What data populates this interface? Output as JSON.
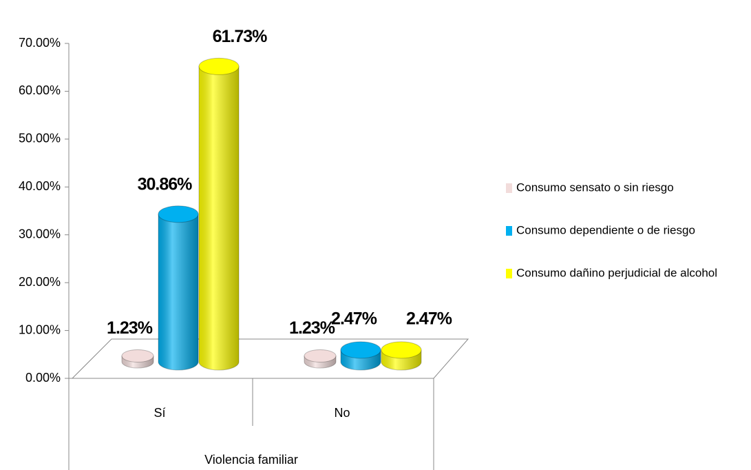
{
  "chart_data": {
    "type": "bar3d",
    "categories": [
      "Sí",
      "No"
    ],
    "x_label": "Violencia familiar",
    "series": [
      {
        "name": "Consumo sensato o sin riesgo",
        "color": "#f2dcdb",
        "values": [
          1.23,
          1.23
        ],
        "value_labels": [
          "1.23%",
          "1.23%"
        ]
      },
      {
        "name": "Consumo dependiente o de riesgo",
        "color": "#00b0f0",
        "values": [
          30.86,
          2.47
        ],
        "value_labels": [
          "30.86%",
          "2.47%"
        ]
      },
      {
        "name": "Consumo dañino perjudicial de alcohol",
        "color": "#ffff00",
        "values": [
          61.73,
          2.47
        ],
        "value_labels": [
          "61.73%",
          "2.47%"
        ]
      }
    ],
    "ylim": [
      0,
      70
    ],
    "yticks": [
      {
        "value": 0,
        "label": "0.00%"
      },
      {
        "value": 10,
        "label": "10.00%"
      },
      {
        "value": 20,
        "label": "20.00%"
      },
      {
        "value": 30,
        "label": "30.00%"
      },
      {
        "value": 40,
        "label": "40.00%"
      },
      {
        "value": 50,
        "label": "50.00%"
      },
      {
        "value": 60,
        "label": "60.00%"
      },
      {
        "value": 70,
        "label": "70.00%"
      }
    ],
    "legend": "right"
  }
}
